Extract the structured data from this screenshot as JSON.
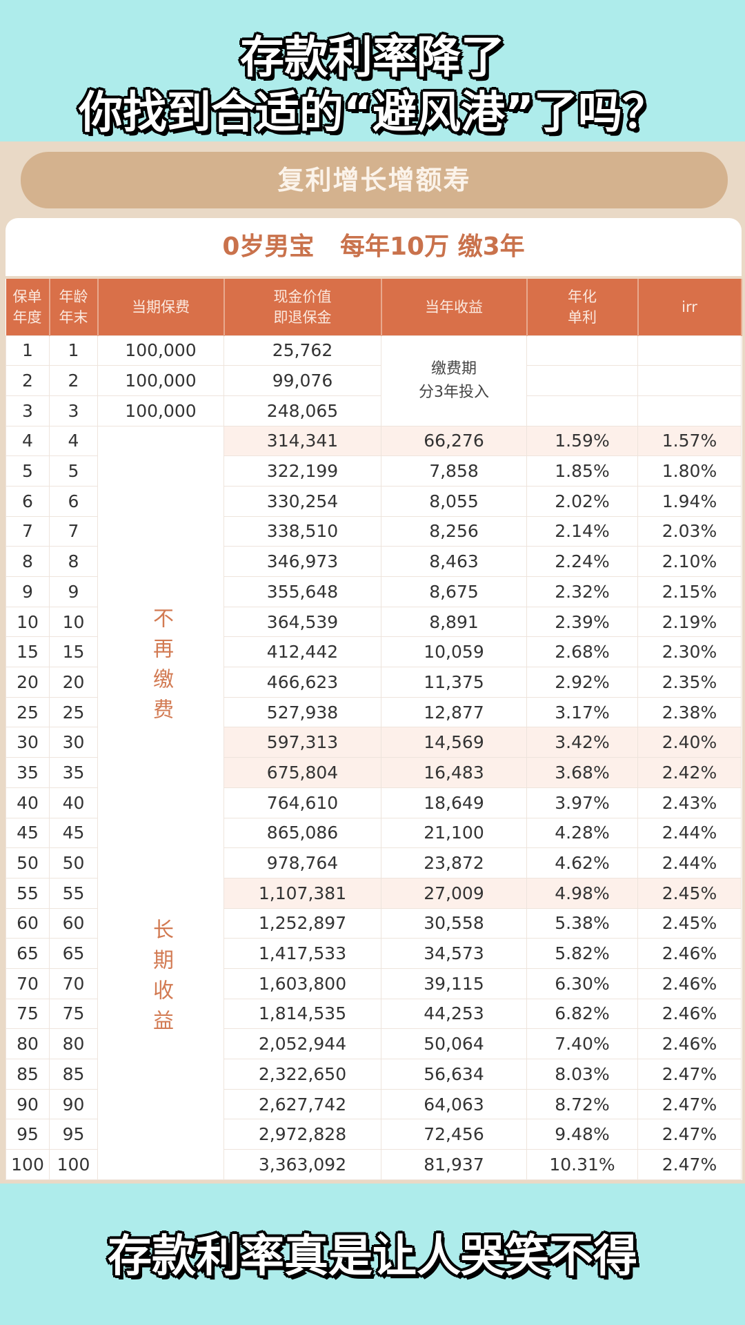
{
  "caption_top": [
    "存款利率降了",
    "你找到合适的“避风港”了吗？"
  ],
  "caption_bottom": "存款利率真是让人哭笑不得",
  "product_title": "复利增长增额寿",
  "scenario": "0岁男宝   每年10万 缴3年",
  "colors": {
    "header": "#d97049",
    "pill": "#d4b28e",
    "accent_text": "#c9724c",
    "caption_bg": "#aeeceb"
  },
  "table": {
    "headers": [
      "保单\n年度",
      "年龄\n年末",
      "当期保费",
      "现金价值\n即退保金",
      "当年收益",
      "年化\n单利",
      "irr"
    ],
    "payment_note": "缴费期\n分3年投入",
    "no_more_payment": "不再缴费",
    "long_term": "长期收益",
    "rows": [
      [
        "1",
        "1",
        "100,000",
        "25,762",
        "",
        "",
        ""
      ],
      [
        "2",
        "2",
        "100,000",
        "99,076",
        "",
        "",
        ""
      ],
      [
        "3",
        "3",
        "100,000",
        "248,065",
        "",
        "",
        ""
      ],
      [
        "4",
        "4",
        "",
        "314,341",
        "66,276",
        "1.59%",
        "1.57%"
      ],
      [
        "5",
        "5",
        "",
        "322,199",
        "7,858",
        "1.85%",
        "1.80%"
      ],
      [
        "6",
        "6",
        "",
        "330,254",
        "8,055",
        "2.02%",
        "1.94%"
      ],
      [
        "7",
        "7",
        "",
        "338,510",
        "8,256",
        "2.14%",
        "2.03%"
      ],
      [
        "8",
        "8",
        "",
        "346,973",
        "8,463",
        "2.24%",
        "2.10%"
      ],
      [
        "9",
        "9",
        "",
        "355,648",
        "8,675",
        "2.32%",
        "2.15%"
      ],
      [
        "10",
        "10",
        "",
        "364,539",
        "8,891",
        "2.39%",
        "2.19%"
      ],
      [
        "15",
        "15",
        "",
        "412,442",
        "10,059",
        "2.68%",
        "2.30%"
      ],
      [
        "20",
        "20",
        "",
        "466,623",
        "11,375",
        "2.92%",
        "2.35%"
      ],
      [
        "25",
        "25",
        "",
        "527,938",
        "12,877",
        "3.17%",
        "2.38%"
      ],
      [
        "30",
        "30",
        "",
        "597,313",
        "14,569",
        "3.42%",
        "2.40%"
      ],
      [
        "35",
        "35",
        "",
        "675,804",
        "16,483",
        "3.68%",
        "2.42%"
      ],
      [
        "40",
        "40",
        "",
        "764,610",
        "18,649",
        "3.97%",
        "2.43%"
      ],
      [
        "45",
        "45",
        "",
        "865,086",
        "21,100",
        "4.28%",
        "2.44%"
      ],
      [
        "50",
        "50",
        "",
        "978,764",
        "23,872",
        "4.62%",
        "2.44%"
      ],
      [
        "55",
        "55",
        "",
        "1,107,381",
        "27,009",
        "4.98%",
        "2.45%"
      ],
      [
        "60",
        "60",
        "",
        "1,252,897",
        "30,558",
        "5.38%",
        "2.45%"
      ],
      [
        "65",
        "65",
        "",
        "1,417,533",
        "34,573",
        "5.82%",
        "2.46%"
      ],
      [
        "70",
        "70",
        "",
        "1,603,800",
        "39,115",
        "6.30%",
        "2.46%"
      ],
      [
        "75",
        "75",
        "",
        "1,814,535",
        "44,253",
        "6.82%",
        "2.46%"
      ],
      [
        "80",
        "80",
        "",
        "2,052,944",
        "50,064",
        "7.40%",
        "2.46%"
      ],
      [
        "85",
        "85",
        "",
        "2,322,650",
        "56,634",
        "8.03%",
        "2.47%"
      ],
      [
        "90",
        "90",
        "",
        "2,627,742",
        "64,063",
        "8.72%",
        "2.47%"
      ],
      [
        "95",
        "95",
        "",
        "2,972,828",
        "72,456",
        "9.48%",
        "2.47%"
      ],
      [
        "100",
        "100",
        "",
        "3,363,092",
        "81,937",
        "10.31%",
        "2.47%"
      ]
    ],
    "highlighted_rows": [
      "4",
      "30",
      "35",
      "55"
    ]
  }
}
